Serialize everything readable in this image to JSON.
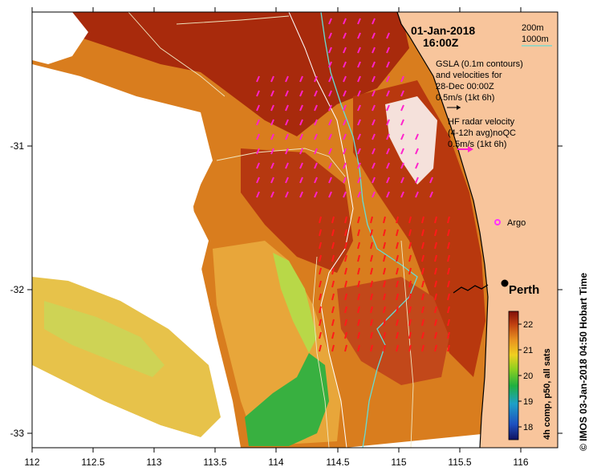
{
  "map": {
    "title_date": "01-Jan-2018",
    "title_time": "16:00Z",
    "axes": {
      "lon_range": [
        112,
        116.3
      ],
      "lat_range": [
        -33.1,
        -30.1
      ],
      "x_ticks": [
        "112",
        "112.5",
        "113",
        "113.5",
        "114",
        "114.5",
        "115",
        "115.5",
        "116"
      ],
      "y_ticks": [
        "-31",
        "-32",
        "-33"
      ]
    },
    "legend": {
      "contour_200": "200m",
      "contour_1000": "1000m",
      "gsla_line1": "GSLA (0.1m contours)",
      "gsla_line2": "and velocities for",
      "gsla_line3": "28-Dec 00:00Z",
      "gsla_scale": "0.5m/s (1kt 6h)",
      "hf_line1": "HF radar velocity",
      "hf_line2": "(4-12h avg)noQC",
      "hf_scale": "0.5m/s (1kt 6h)"
    },
    "markers": {
      "argo_label": "Argo",
      "city_label": "Perth"
    },
    "colorbar": {
      "ticks": [
        "22",
        "21",
        "20",
        "19",
        "18"
      ],
      "range": [
        17.6,
        22.6
      ],
      "label": "4h comp, p50, all sats"
    },
    "credit": "© IMOS 03-Jan-2018 04:50 Hobart Time",
    "colors": {
      "land": "#f8c59c",
      "hf_arrow": "#ff22cc",
      "isobath_200": "#66dcd4",
      "isobath_1000": "#ffffff",
      "argo": "#ff33ff"
    }
  }
}
